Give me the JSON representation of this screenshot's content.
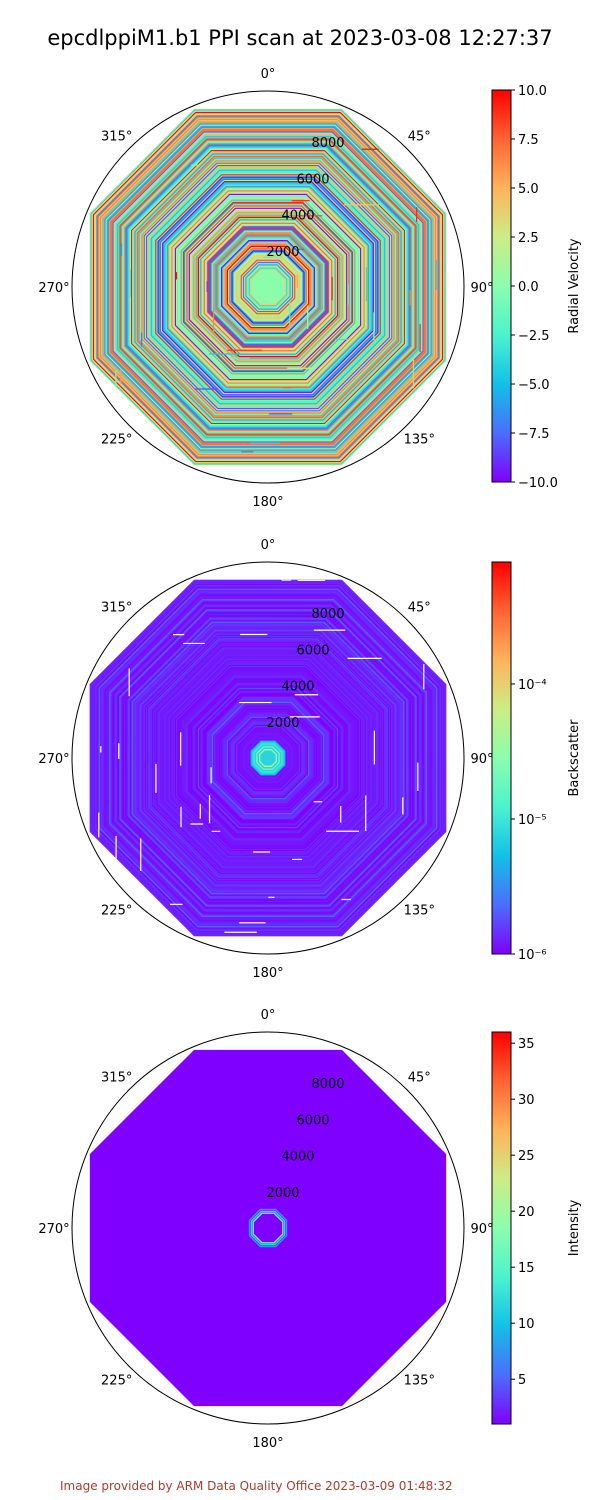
{
  "title": "epcdlppiM1.b1 PPI scan at 2023-03-08 12:27:37",
  "footer": "Image provided by ARM Data Quality Office 2023-03-09 01:48:32",
  "colors": {
    "map": [
      "#8000ff",
      "#4a6efc",
      "#13c0e8",
      "#4cf3ce",
      "#8bfeac",
      "#cced86",
      "#ffb35b",
      "#ff6334",
      "#ff0000"
    ],
    "circle": "#000000"
  },
  "chart_data": [
    {
      "type": "heatmap",
      "projection": "polar",
      "colorbar_label": "Radial Velocity",
      "colorbar_scale": "linear",
      "clim": [
        -10.0,
        10.0
      ],
      "colorbar_ticks": [
        "10.0",
        "7.5",
        "5.0",
        "2.5",
        "0.0",
        "−2.5",
        "−5.0",
        "−7.5",
        "−10.0"
      ],
      "colorbar_tick_values": [
        10,
        7.5,
        5,
        2.5,
        0,
        -2.5,
        -5,
        -7.5,
        -10
      ],
      "angle_labels": [
        "0°",
        "45°",
        "90°",
        "135°",
        "180°",
        "225°",
        "270°",
        "315°"
      ],
      "range_labels": [
        "2000",
        "4000",
        "6000",
        "8000"
      ],
      "range_values": [
        2000,
        4000,
        6000,
        8000
      ],
      "range_max": 10000,
      "pattern": "noisy"
    },
    {
      "type": "heatmap",
      "projection": "polar",
      "colorbar_label": "Backscatter",
      "colorbar_scale": "log",
      "clim": [
        1e-06,
        0.0008
      ],
      "colorbar_ticks": [
        "10⁻⁴",
        "10⁻⁵",
        "10⁻⁶"
      ],
      "colorbar_tick_values": [
        0.0001,
        1e-05,
        1e-06
      ],
      "angle_labels": [
        "0°",
        "45°",
        "90°",
        "135°",
        "180°",
        "225°",
        "270°",
        "315°"
      ],
      "range_labels": [
        "2000",
        "4000",
        "6000",
        "8000"
      ],
      "range_values": [
        2000,
        4000,
        6000,
        8000
      ],
      "range_max": 10000,
      "pattern": "low"
    },
    {
      "type": "heatmap",
      "projection": "polar",
      "colorbar_label": "Intensity",
      "colorbar_scale": "linear",
      "clim": [
        1.0,
        36.0
      ],
      "colorbar_ticks": [
        "35",
        "30",
        "25",
        "20",
        "15",
        "10",
        "5"
      ],
      "colorbar_tick_values": [
        35,
        30,
        25,
        20,
        15,
        10,
        5
      ],
      "angle_labels": [
        "0°",
        "45°",
        "90°",
        "135°",
        "180°",
        "225°",
        "270°",
        "315°"
      ],
      "range_labels": [
        "2000",
        "4000",
        "6000",
        "8000"
      ],
      "range_values": [
        2000,
        4000,
        6000,
        8000
      ],
      "range_max": 10000,
      "pattern": "flat"
    }
  ]
}
